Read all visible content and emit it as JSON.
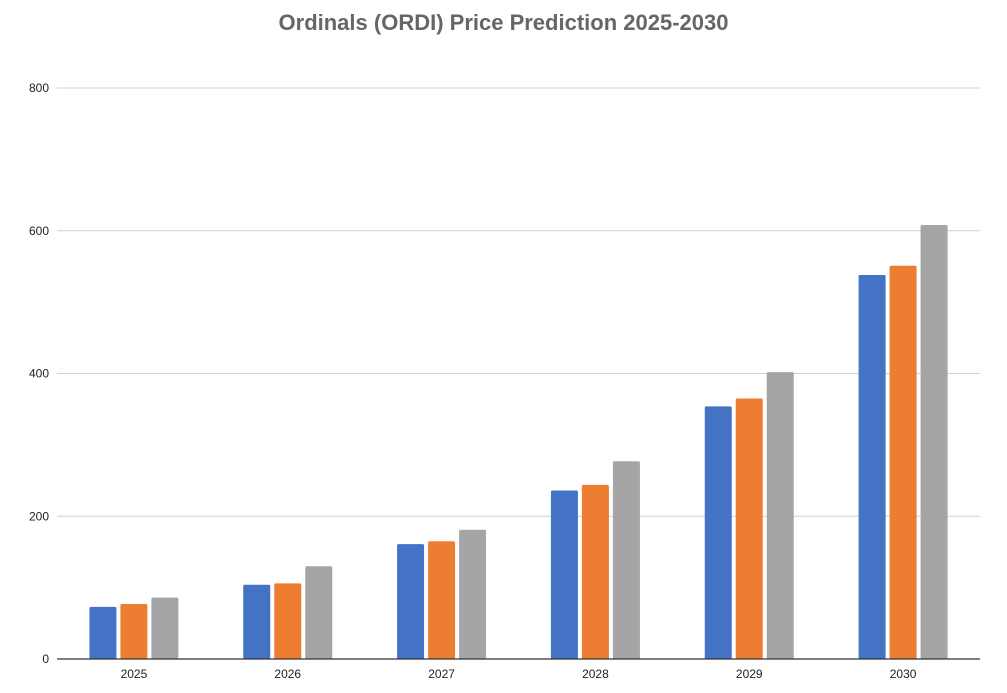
{
  "chart_data": {
    "type": "bar",
    "title": "Ordinals (ORDI) Price Prediction 2025-2030",
    "categories": [
      "2025",
      "2026",
      "2027",
      "2028",
      "2029",
      "2030"
    ],
    "series": [
      {
        "values": [
          73,
          104,
          161,
          236,
          354,
          538
        ],
        "color": "#4472c4"
      },
      {
        "values": [
          77,
          106,
          165,
          244,
          365,
          551
        ],
        "color": "#ed7d31"
      },
      {
        "values": [
          86,
          130,
          181,
          277,
          402,
          608
        ],
        "color": "#a5a5a5"
      }
    ],
    "ylim": [
      0,
      800
    ],
    "yticks": [
      "0",
      "200",
      "400",
      "600",
      "800"
    ],
    "grid": true,
    "legend": "none",
    "xlabel": "",
    "ylabel": ""
  }
}
